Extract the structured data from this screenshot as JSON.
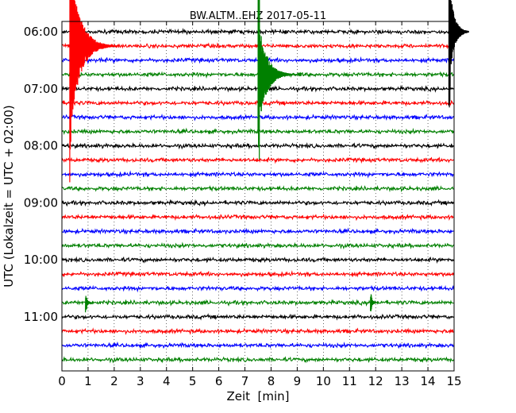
{
  "chart_data": {
    "type": "line",
    "title": "BW.ALTM..EHZ 2017-05-11",
    "xlabel": "Zeit  [min]",
    "ylabel": "UTC (Lokalzeit = UTC + 02:00)",
    "xlim": [
      0,
      15
    ],
    "x_ticks": [
      "0",
      "1",
      "2",
      "3",
      "4",
      "5",
      "6",
      "7",
      "8",
      "9",
      "10",
      "11",
      "12",
      "13",
      "14",
      "15"
    ],
    "y_ticks": [
      {
        "time": "06:00",
        "trace": 0
      },
      {
        "time": "07:00",
        "trace": 4
      },
      {
        "time": "08:00",
        "trace": 8
      },
      {
        "time": "09:00",
        "trace": 12
      },
      {
        "time": "10:00",
        "trace": 16
      },
      {
        "time": "11:00",
        "trace": 20
      }
    ],
    "grid": "vertical-dotted",
    "trace_colors": [
      "#000000",
      "#ff0000",
      "#0000ff",
      "#008000"
    ],
    "traces": [
      {
        "start": "06:00"
      },
      {
        "start": "06:15"
      },
      {
        "start": "06:30"
      },
      {
        "start": "06:45"
      },
      {
        "start": "07:00"
      },
      {
        "start": "07:15"
      },
      {
        "start": "07:30"
      },
      {
        "start": "07:45"
      },
      {
        "start": "08:00"
      },
      {
        "start": "08:15"
      },
      {
        "start": "08:30"
      },
      {
        "start": "08:45"
      },
      {
        "start": "09:00"
      },
      {
        "start": "09:15"
      },
      {
        "start": "09:30"
      },
      {
        "start": "09:45"
      },
      {
        "start": "10:00"
      },
      {
        "start": "10:15"
      },
      {
        "start": "10:30"
      },
      {
        "start": "10:45"
      },
      {
        "start": "11:00"
      },
      {
        "start": "11:15"
      },
      {
        "start": "11:30"
      },
      {
        "start": "11:45"
      }
    ],
    "events": [
      {
        "trace": 1,
        "time_min": 0.3,
        "color": "#ff0000"
      },
      {
        "trace": 3,
        "time_min": 7.5,
        "color": "#008000"
      },
      {
        "trace": 0,
        "time_min": 14.8,
        "color": "#000000"
      },
      {
        "trace": 19,
        "time_min": 0.9,
        "color": "#008000"
      },
      {
        "trace": 19,
        "time_min": 11.8,
        "color": "#008000"
      }
    ]
  }
}
